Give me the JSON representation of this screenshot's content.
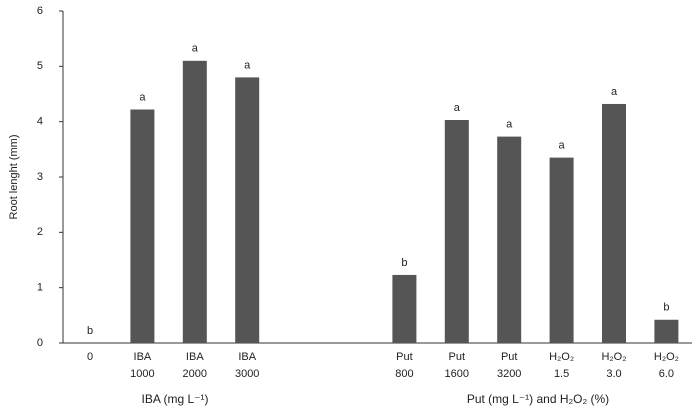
{
  "chart_data": {
    "type": "bar",
    "y_label": "Root lenght (mm)",
    "x_labels": [
      "IBA (mg L⁻¹)",
      "Put (mg L⁻¹)  and H₂O₂ (%)"
    ],
    "categories": [
      "0",
      "IBA 1000",
      "IBA 2000",
      "IBA 3000",
      null,
      null,
      "Put 800",
      "Put 1600",
      "Put 3200",
      "H₂O₂ 1.5",
      "H₂O₂ 3.0",
      "H₂O₂ 6.0"
    ],
    "values": [
      0,
      4.22,
      5.1,
      4.8,
      null,
      null,
      1.23,
      4.03,
      3.73,
      3.35,
      4.32,
      0.42
    ],
    "letters": [
      "b",
      "a",
      "a",
      "a",
      null,
      null,
      "b",
      "a",
      "a",
      "a",
      "a",
      "b"
    ],
    "color": "#555555",
    "ylim": [
      0,
      6
    ],
    "yticks": [
      0,
      1,
      2,
      3,
      4,
      5,
      6
    ],
    "grid": false
  }
}
